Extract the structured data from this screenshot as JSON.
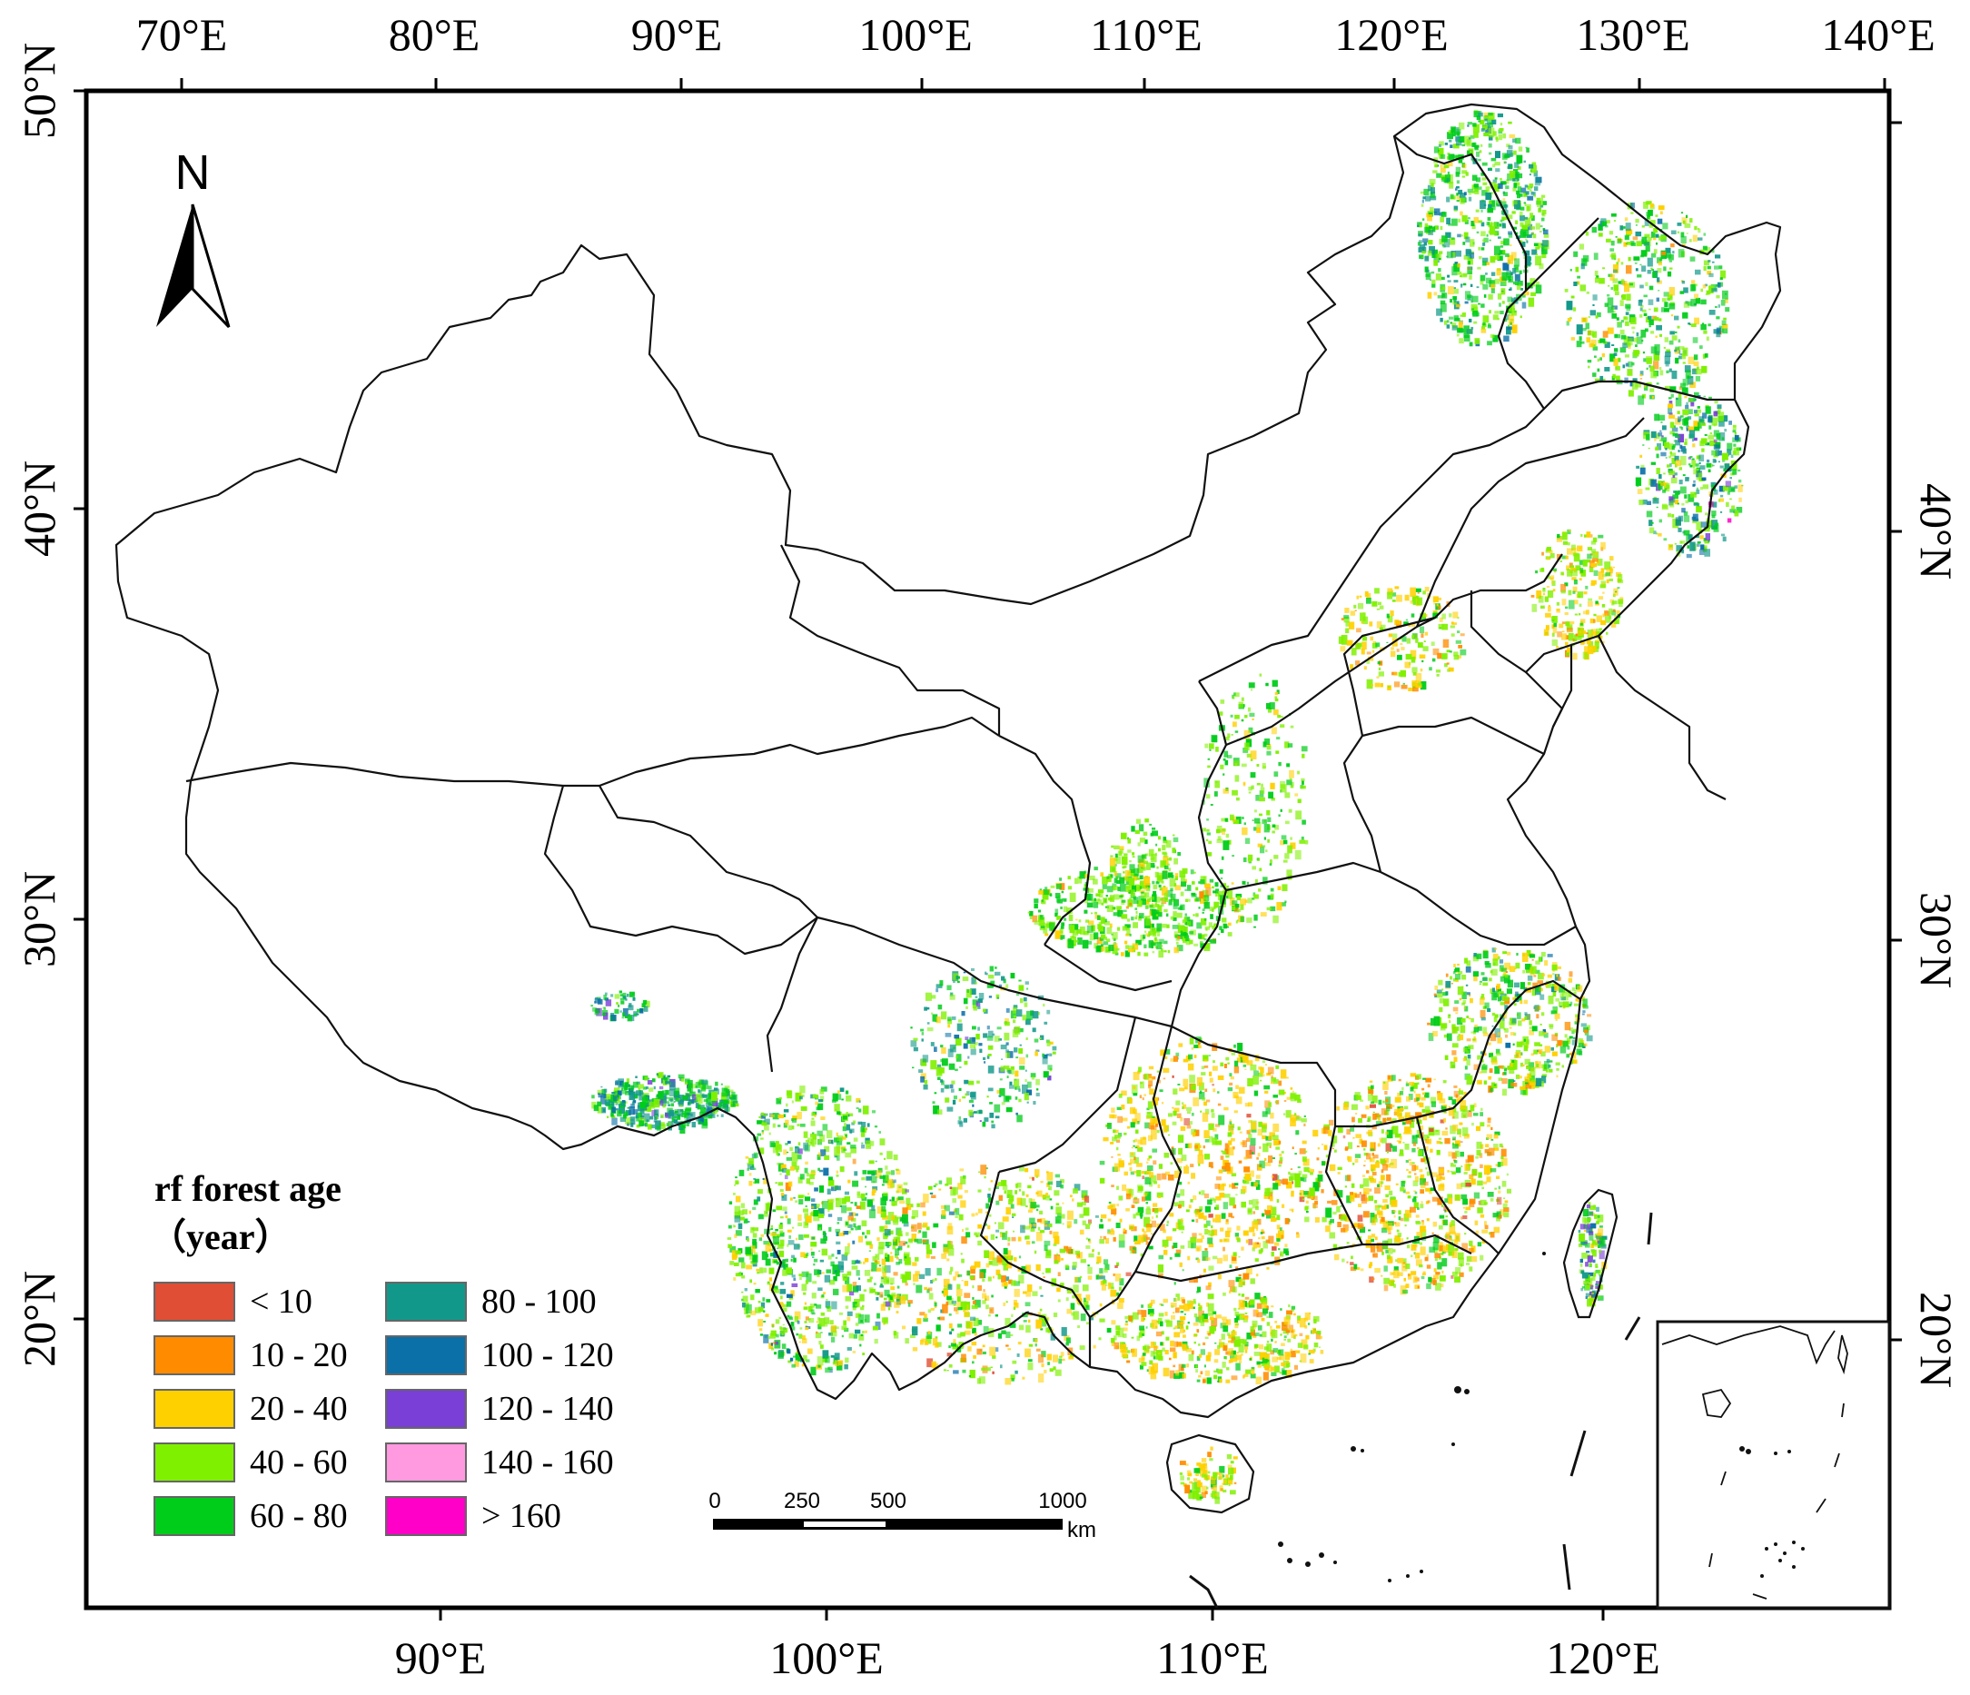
{
  "map": {
    "top_axis_labels": [
      "70°E",
      "80°E",
      "90°E",
      "100°E",
      "110°E",
      "120°E",
      "130°E",
      "140°E"
    ],
    "bottom_axis_labels": [
      "90°E",
      "100°E",
      "110°E",
      "120°E"
    ],
    "left_axis_labels": [
      "50°N",
      "40°N",
      "30°N",
      "20°N"
    ],
    "right_axis_labels": [
      "40°N",
      "30°N",
      "20°N"
    ],
    "north_arrow": {
      "label": "N",
      "icon": "north-arrow-icon"
    },
    "legend": {
      "title_line1": "rf forest age",
      "title_line2": "（year）",
      "classes": [
        {
          "label": "< 10",
          "color": "#e04e35"
        },
        {
          "label": "10 - 20",
          "color": "#ff8c00"
        },
        {
          "label": "20 - 40",
          "color": "#ffd000"
        },
        {
          "label": "40 - 60",
          "color": "#7ff000"
        },
        {
          "label": "60 - 80",
          "color": "#00cc1a"
        },
        {
          "label": "80 - 100",
          "color": "#12988a"
        },
        {
          "label": "100 - 120",
          "color": "#0b6fa8"
        },
        {
          "label": "120 - 140",
          "color": "#7a3fd6"
        },
        {
          "label": "140 - 160",
          "color": "#ff9ae0"
        },
        {
          "label": "> 160",
          "color": "#ff00c8"
        }
      ]
    },
    "scale_bar": {
      "labels": [
        "0",
        "250",
        "500",
        "1000"
      ],
      "unit": "km"
    }
  }
}
